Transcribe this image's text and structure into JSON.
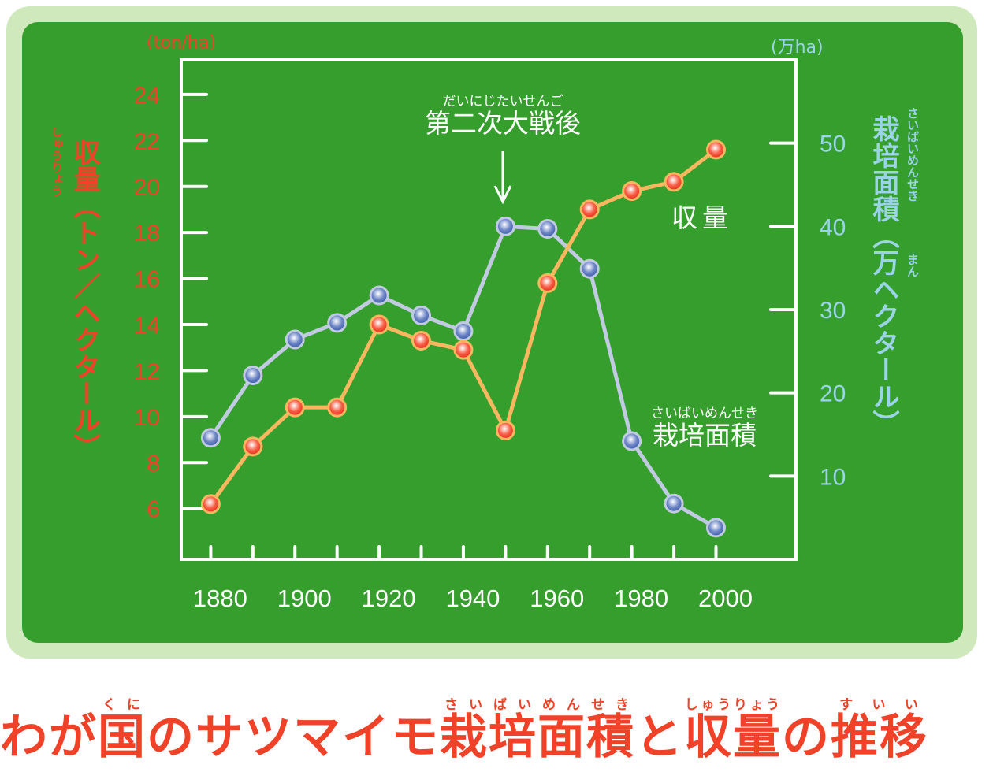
{
  "chart_data": {
    "type": "line",
    "title": "",
    "x": [
      1880,
      1890,
      1900,
      1910,
      1920,
      1930,
      1940,
      1950,
      1960,
      1970,
      1980,
      1990,
      2000
    ],
    "x_tick_labels": [
      "1880",
      "1900",
      "1920",
      "1940",
      "1960",
      "1980",
      "2000"
    ],
    "xlim": [
      1873,
      2019
    ],
    "left_axis": {
      "unit": "(ton/ha)",
      "label": "収量（トン／ヘクタール）",
      "label_ruby": "しゅうりょう",
      "ticks": [
        6,
        8,
        10,
        12,
        14,
        16,
        18,
        20,
        22,
        24
      ],
      "ylim": [
        3.8,
        25.5
      ],
      "color": "#f04228"
    },
    "right_axis": {
      "unit": "(万ha)",
      "label_main": "栽培面積",
      "label_ruby": "さいばいめんせき",
      "label_paren": "（万ヘクタール）",
      "label_paren_ruby": "まん",
      "ticks": [
        10,
        20,
        30,
        40,
        50
      ],
      "ylim": [
        0,
        60
      ],
      "color": "#9ad4e6"
    },
    "series": [
      {
        "name": "収量",
        "axis": "left",
        "line_color": "#f9b860",
        "marker_color": "#f03020",
        "marker_ring": "#f9b860",
        "values": [
          6.2,
          8.7,
          10.4,
          10.4,
          14.0,
          13.3,
          12.9,
          9.4,
          15.8,
          19.0,
          19.8,
          20.2,
          21.6
        ]
      },
      {
        "name": "栽培面積",
        "name_ruby": "さいばいめんせき",
        "axis": "right",
        "line_color": "#c0cae0",
        "marker_color": "#4060b0",
        "marker_ring": "#c0cae0",
        "values": [
          14.6,
          22.1,
          26.4,
          28.4,
          31.7,
          29.3,
          27.4,
          40.0,
          39.7,
          34.9,
          14.2,
          6.7,
          3.8
        ]
      }
    ],
    "annotations": [
      {
        "text": "第二次大戦後",
        "ruby": "だいにじたいせんご",
        "arrow_to_x": 1950
      }
    ],
    "grid": false,
    "background": "#359e2d"
  },
  "title_segments": [
    {
      "text": "わが"
    },
    {
      "text": "国",
      "ruby": "くに"
    },
    {
      "text": "のサツマイモ"
    },
    {
      "text": "栽培",
      "ruby": "さいばい"
    },
    {
      "text": "面積",
      "ruby": "めんせき"
    },
    {
      "text": "と"
    },
    {
      "text": "収量",
      "ruby": "しゅうりょう"
    },
    {
      "text": "の"
    },
    {
      "text": "推移",
      "ruby": "すいい"
    }
  ]
}
